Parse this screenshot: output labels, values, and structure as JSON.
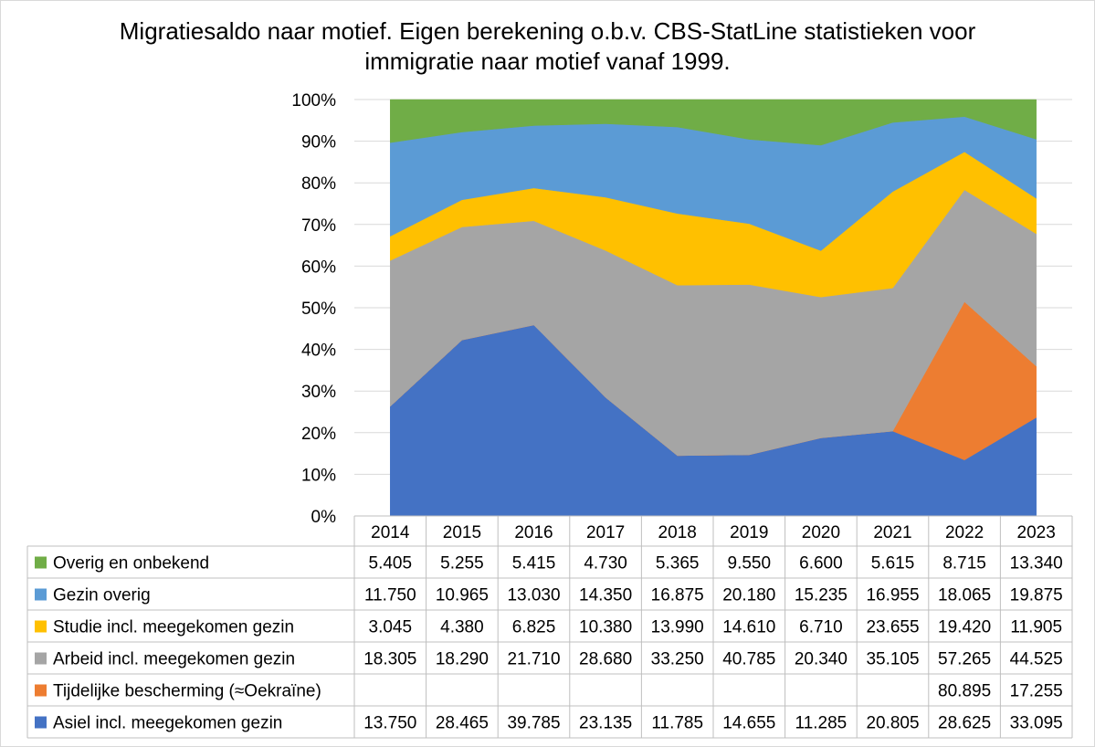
{
  "chart_data": {
    "type": "area",
    "stacking": "percent",
    "title_lines": [
      "Migratiesaldo naar motief. Eigen berekening o.b.v. CBS-StatLine statistieken voor",
      "immigratie naar motief vanaf 1999."
    ],
    "categories": [
      "2014",
      "2015",
      "2016",
      "2017",
      "2018",
      "2019",
      "2020",
      "2021",
      "2022",
      "2023"
    ],
    "y_ticks": [
      "0%",
      "10%",
      "20%",
      "30%",
      "40%",
      "50%",
      "60%",
      "70%",
      "80%",
      "90%",
      "100%"
    ],
    "ylim": [
      0,
      100
    ],
    "grid": true,
    "series_stack_order": [
      {
        "name": "Asiel incl. meegekomen gezin",
        "color": "#4472C4",
        "values": [
          13750,
          28465,
          39785,
          23135,
          11785,
          14655,
          11285,
          20805,
          28625,
          33095
        ]
      },
      {
        "name": "Tijdelijke bescherming (≈Oekraïne)",
        "color": "#ED7D31",
        "values": [
          null,
          null,
          null,
          null,
          null,
          null,
          null,
          null,
          80895,
          17255
        ]
      },
      {
        "name": "Arbeid incl. meegekomen gezin",
        "color": "#A5A5A5",
        "values": [
          18305,
          18290,
          21710,
          28680,
          33250,
          40785,
          20340,
          35105,
          57265,
          44525
        ]
      },
      {
        "name": "Studie incl. meegekomen gezin",
        "color": "#FFC000",
        "values": [
          3045,
          4380,
          6825,
          10380,
          13990,
          14610,
          6710,
          23655,
          19420,
          11905
        ]
      },
      {
        "name": "Gezin overig",
        "color": "#5B9BD5",
        "values": [
          11750,
          10965,
          13030,
          14350,
          16875,
          20180,
          15235,
          16955,
          18065,
          19875
        ]
      },
      {
        "name": "Overig en onbekend",
        "color": "#70AD47",
        "values": [
          5405,
          5255,
          5415,
          4730,
          5365,
          9550,
          6600,
          5615,
          8715,
          13340
        ]
      }
    ],
    "table_rows": [
      {
        "name": "Overig en onbekend",
        "color": "#70AD47",
        "cells": [
          "5.405",
          "5.255",
          "5.415",
          "4.730",
          "5.365",
          "9.550",
          "6.600",
          "5.615",
          "8.715",
          "13.340"
        ]
      },
      {
        "name": "Gezin overig",
        "color": "#5B9BD5",
        "cells": [
          "11.750",
          "10.965",
          "13.030",
          "14.350",
          "16.875",
          "20.180",
          "15.235",
          "16.955",
          "18.065",
          "19.875"
        ]
      },
      {
        "name": "Studie incl. meegekomen gezin",
        "color": "#FFC000",
        "cells": [
          "3.045",
          "4.380",
          "6.825",
          "10.380",
          "13.990",
          "14.610",
          "6.710",
          "23.655",
          "19.420",
          "11.905"
        ]
      },
      {
        "name": "Arbeid incl. meegekomen gezin",
        "color": "#A5A5A5",
        "cells": [
          "18.305",
          "18.290",
          "21.710",
          "28.680",
          "33.250",
          "40.785",
          "20.340",
          "35.105",
          "57.265",
          "44.525"
        ]
      },
      {
        "name": "Tijdelijke bescherming (≈Oekraïne)",
        "color": "#ED7D31",
        "cells": [
          "",
          "",
          "",
          "",
          "",
          "",
          "",
          "",
          "80.895",
          "17.255"
        ]
      },
      {
        "name": "Asiel incl. meegekomen gezin",
        "color": "#4472C4",
        "cells": [
          "13.750",
          "28.465",
          "39.785",
          "23.135",
          "11.785",
          "14.655",
          "11.285",
          "20.805",
          "28.625",
          "33.095"
        ]
      }
    ]
  }
}
